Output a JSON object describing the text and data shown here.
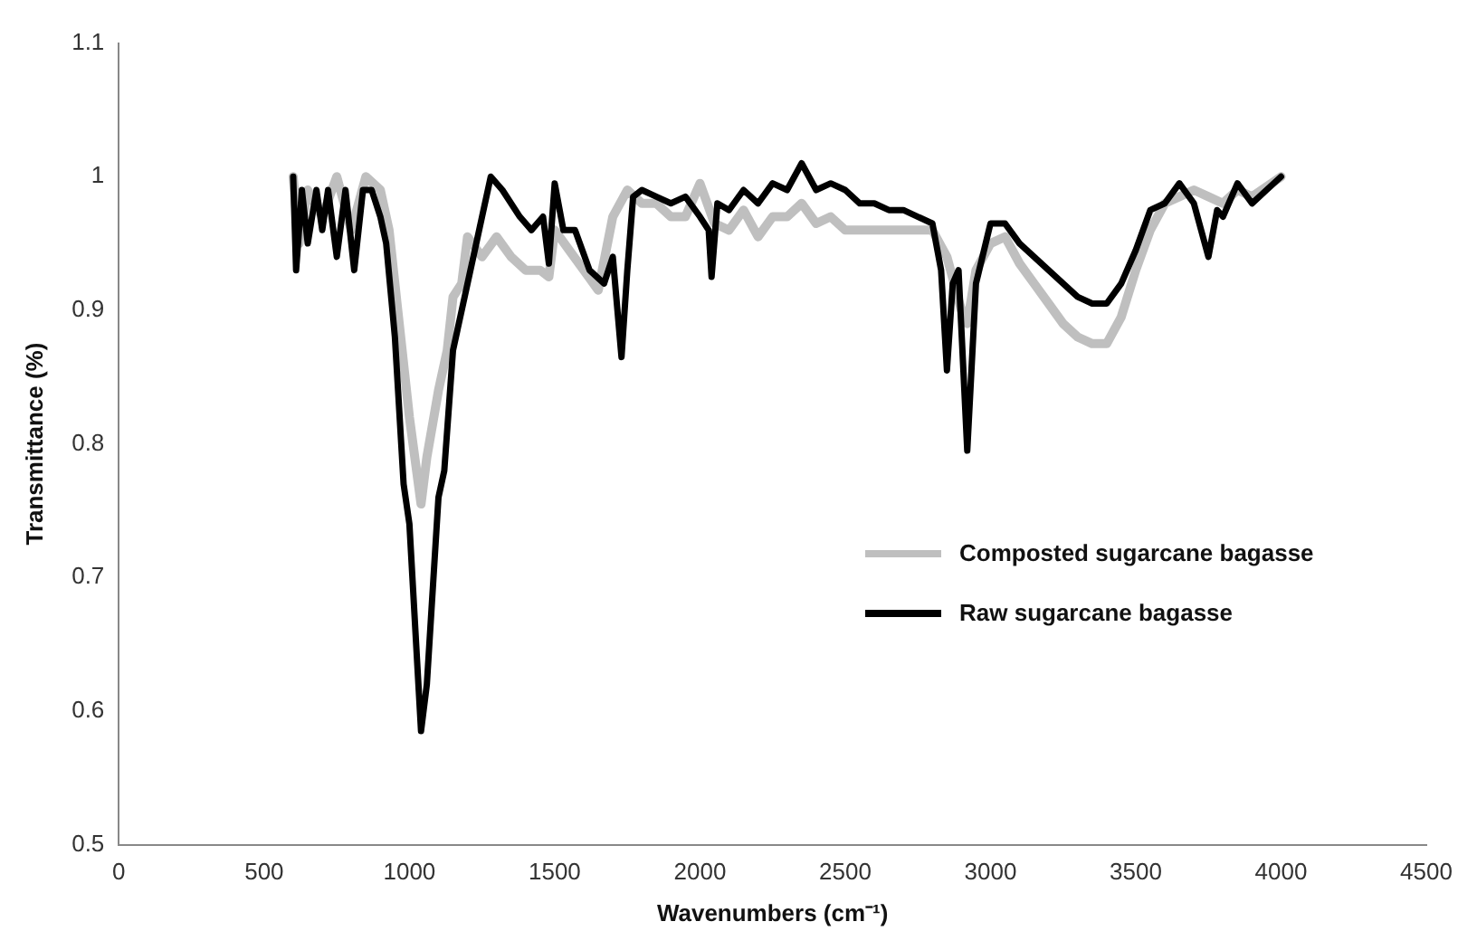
{
  "chart_data": {
    "type": "line",
    "xlabel": "Wavenumbers (cm⁻¹)",
    "ylabel": "Transmittance (%)",
    "xlim": [
      0,
      4500
    ],
    "xticks": [
      0,
      500,
      1000,
      1500,
      2000,
      2500,
      3000,
      3500,
      4000,
      4500
    ],
    "ylim": [
      0.5,
      1.1
    ],
    "yticks": [
      0.5,
      0.6,
      0.7,
      0.8,
      0.9,
      1,
      1.1
    ],
    "grid": false,
    "legend": "right",
    "marker": "none",
    "line_style": "solid",
    "series": [
      {
        "name": "Composted sugarcane bagasse",
        "color": "#bfbfbf",
        "x": [
          600,
          620,
          650,
          700,
          750,
          800,
          850,
          900,
          930,
          960,
          1000,
          1040,
          1060,
          1100,
          1130,
          1150,
          1180,
          1200,
          1250,
          1300,
          1350,
          1400,
          1450,
          1480,
          1500,
          1550,
          1600,
          1650,
          1700,
          1750,
          1800,
          1850,
          1900,
          1950,
          2000,
          2050,
          2100,
          2150,
          2200,
          2250,
          2300,
          2350,
          2400,
          2450,
          2500,
          2600,
          2700,
          2800,
          2850,
          2900,
          2920,
          2950,
          3000,
          3050,
          3100,
          3150,
          3200,
          3250,
          3300,
          3350,
          3400,
          3450,
          3500,
          3550,
          3600,
          3650,
          3700,
          3750,
          3800,
          3850,
          3900,
          4000
        ],
        "values": [
          1.0,
          0.95,
          0.99,
          0.97,
          1.0,
          0.96,
          1.0,
          0.99,
          0.96,
          0.9,
          0.82,
          0.755,
          0.79,
          0.84,
          0.87,
          0.91,
          0.92,
          0.955,
          0.94,
          0.955,
          0.94,
          0.93,
          0.93,
          0.925,
          0.96,
          0.945,
          0.93,
          0.915,
          0.97,
          0.99,
          0.98,
          0.98,
          0.97,
          0.97,
          0.995,
          0.965,
          0.96,
          0.975,
          0.955,
          0.97,
          0.97,
          0.98,
          0.965,
          0.97,
          0.96,
          0.96,
          0.96,
          0.96,
          0.94,
          0.9,
          0.89,
          0.93,
          0.95,
          0.955,
          0.935,
          0.92,
          0.905,
          0.89,
          0.88,
          0.875,
          0.875,
          0.895,
          0.93,
          0.96,
          0.98,
          0.985,
          0.99,
          0.985,
          0.98,
          0.99,
          0.985,
          1.0
        ]
      },
      {
        "name": "Raw sugarcane bagasse",
        "color": "#000000",
        "x": [
          600,
          610,
          630,
          650,
          680,
          700,
          720,
          750,
          780,
          810,
          840,
          870,
          900,
          920,
          950,
          980,
          1000,
          1040,
          1060,
          1100,
          1120,
          1150,
          1200,
          1250,
          1280,
          1320,
          1380,
          1420,
          1460,
          1480,
          1500,
          1530,
          1570,
          1620,
          1670,
          1700,
          1730,
          1750,
          1770,
          1800,
          1850,
          1900,
          1950,
          2000,
          2030,
          2040,
          2060,
          2100,
          2150,
          2200,
          2250,
          2300,
          2350,
          2400,
          2450,
          2500,
          2550,
          2600,
          2650,
          2700,
          2750,
          2800,
          2830,
          2850,
          2870,
          2890,
          2920,
          2950,
          3000,
          3050,
          3100,
          3150,
          3200,
          3250,
          3300,
          3350,
          3400,
          3450,
          3500,
          3550,
          3600,
          3650,
          3700,
          3750,
          3780,
          3800,
          3850,
          3900,
          3950,
          4000
        ],
        "values": [
          1.0,
          0.93,
          0.99,
          0.95,
          0.99,
          0.96,
          0.99,
          0.94,
          0.99,
          0.93,
          0.99,
          0.99,
          0.97,
          0.95,
          0.88,
          0.77,
          0.74,
          0.585,
          0.62,
          0.76,
          0.78,
          0.87,
          0.92,
          0.97,
          1.0,
          0.99,
          0.97,
          0.96,
          0.97,
          0.935,
          0.995,
          0.96,
          0.96,
          0.93,
          0.92,
          0.94,
          0.865,
          0.93,
          0.985,
          0.99,
          0.985,
          0.98,
          0.985,
          0.97,
          0.96,
          0.925,
          0.98,
          0.975,
          0.99,
          0.98,
          0.995,
          0.99,
          1.01,
          0.99,
          0.995,
          0.99,
          0.98,
          0.98,
          0.975,
          0.975,
          0.97,
          0.965,
          0.93,
          0.855,
          0.92,
          0.93,
          0.795,
          0.92,
          0.965,
          0.965,
          0.95,
          0.94,
          0.93,
          0.92,
          0.91,
          0.905,
          0.905,
          0.92,
          0.945,
          0.975,
          0.98,
          0.995,
          0.98,
          0.94,
          0.975,
          0.97,
          0.995,
          0.98,
          0.99,
          1.0
        ]
      }
    ]
  }
}
